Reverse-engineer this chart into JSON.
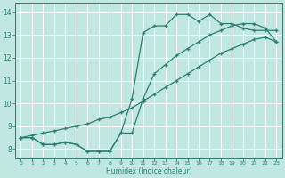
{
  "line_peaked_x": [
    0,
    1,
    2,
    3,
    4,
    5,
    6,
    7,
    8,
    9,
    10,
    11,
    12,
    13,
    14,
    15,
    16,
    17,
    18,
    19,
    20,
    21,
    22,
    23
  ],
  "line_peaked_y": [
    8.5,
    8.5,
    8.2,
    8.2,
    8.3,
    8.2,
    7.9,
    7.9,
    7.9,
    8.7,
    10.2,
    13.1,
    13.4,
    13.4,
    13.9,
    13.9,
    13.6,
    13.9,
    13.5,
    13.5,
    13.3,
    13.2,
    13.2,
    13.2
  ],
  "line_diag_x": [
    0,
    1,
    2,
    3,
    4,
    5,
    6,
    7,
    8,
    9,
    10,
    11,
    12,
    13,
    14,
    15,
    16,
    17,
    18,
    19,
    20,
    21,
    22,
    23
  ],
  "line_diag_y": [
    8.5,
    8.6,
    8.7,
    8.8,
    8.9,
    9.0,
    9.1,
    9.3,
    9.4,
    9.6,
    9.8,
    10.1,
    10.4,
    10.7,
    11.0,
    11.3,
    11.6,
    11.9,
    12.2,
    12.4,
    12.6,
    12.8,
    12.9,
    12.7
  ],
  "line_bottom_x": [
    0,
    1,
    2,
    3,
    4,
    5,
    6,
    7,
    8,
    9,
    10,
    11,
    12,
    13,
    14,
    15,
    16,
    17,
    18,
    19,
    20,
    21,
    22,
    23
  ],
  "line_bottom_y": [
    8.5,
    8.5,
    8.2,
    8.2,
    8.3,
    8.2,
    7.9,
    7.9,
    7.9,
    8.7,
    8.7,
    10.2,
    11.3,
    11.7,
    12.1,
    12.4,
    12.7,
    13.0,
    13.2,
    13.4,
    13.5,
    13.5,
    13.3,
    12.7
  ],
  "line_color": "#2e7d6e",
  "bg_color": "#c0e8e0",
  "grid_color": "#ffffff",
  "xlabel": "Humidex (Indice chaleur)",
  "ylim": [
    7.6,
    14.4
  ],
  "xlim": [
    -0.5,
    23.5
  ],
  "yticks": [
    8,
    9,
    10,
    11,
    12,
    13,
    14
  ],
  "xticks": [
    0,
    1,
    2,
    3,
    4,
    5,
    6,
    7,
    8,
    9,
    10,
    11,
    12,
    13,
    14,
    15,
    16,
    17,
    18,
    19,
    20,
    21,
    22,
    23
  ]
}
